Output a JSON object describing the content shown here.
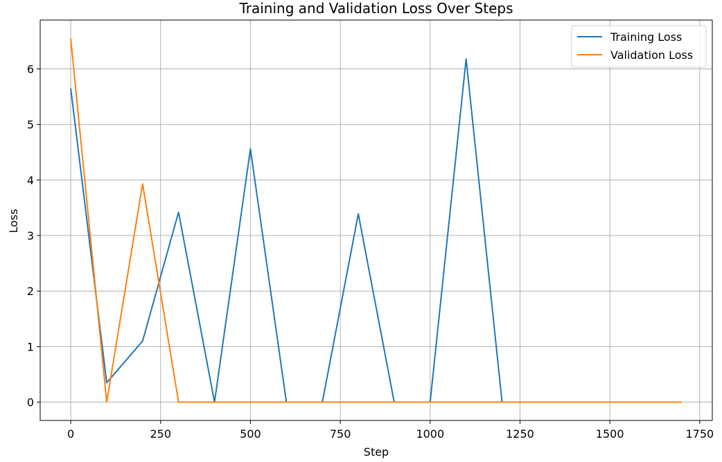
{
  "chart_data": {
    "type": "line",
    "title": "Training and Validation Loss Over Steps",
    "xlabel": "Step",
    "ylabel": "Loss",
    "xlim": [
      -85,
      1785
    ],
    "ylim": [
      -0.33,
      6.88
    ],
    "xticks": [
      0,
      250,
      500,
      750,
      1000,
      1250,
      1500,
      1750
    ],
    "yticks": [
      0,
      1,
      2,
      3,
      4,
      5,
      6
    ],
    "grid": true,
    "legend": "top-right",
    "series": [
      {
        "name": "Training Loss",
        "color": "#1f77b4",
        "x": [
          0,
          100,
          200,
          300,
          400,
          500,
          600,
          700,
          800,
          900,
          1000,
          1100,
          1200,
          1300,
          1400,
          1500,
          1600,
          1700
        ],
        "y": [
          5.65,
          0.35,
          1.1,
          3.42,
          0.0,
          4.56,
          0.0,
          0.0,
          3.39,
          0.0,
          0.0,
          6.18,
          0.0,
          0.0,
          0.0,
          0.0,
          0.0,
          0.0
        ]
      },
      {
        "name": "Validation Loss",
        "color": "#ff7f0e",
        "x": [
          0,
          100,
          200,
          300,
          400,
          500,
          600,
          700,
          800,
          900,
          1000,
          1100,
          1200,
          1300,
          1400,
          1500,
          1600,
          1700
        ],
        "y": [
          6.55,
          0.0,
          3.93,
          0.0,
          0.0,
          0.0,
          0.0,
          0.0,
          0.0,
          0.0,
          0.0,
          0.0,
          0.0,
          0.0,
          0.0,
          0.0,
          0.0,
          0.0
        ]
      }
    ]
  }
}
